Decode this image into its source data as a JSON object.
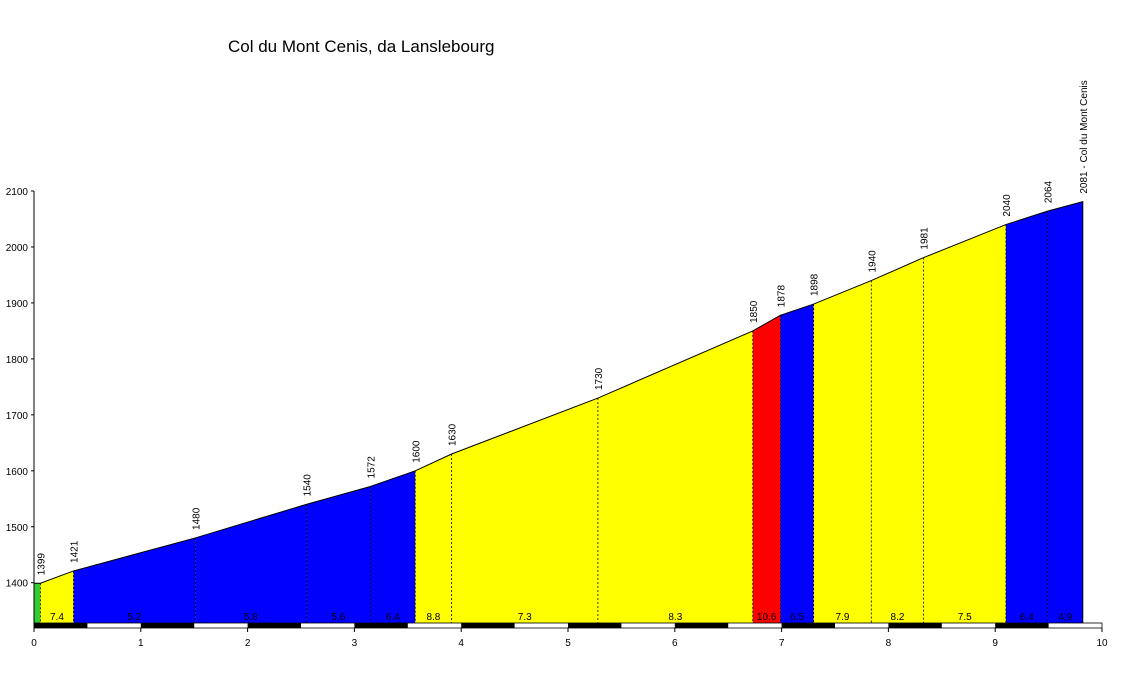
{
  "chart_data": {
    "type": "area",
    "title": "Col du Mont Cenis, da Lanslebourg",
    "xlabel": "",
    "ylabel": "",
    "xlim": [
      0,
      10
    ],
    "ylim": [
      1328,
      2100
    ],
    "x_ticks": [
      "0",
      "1",
      "2",
      "3",
      "4",
      "5",
      "6",
      "7",
      "8",
      "9",
      "10"
    ],
    "y_ticks": [
      "1400",
      "1500",
      "1600",
      "1700",
      "1800",
      "1900",
      "2000",
      "2100"
    ],
    "grid": false,
    "legend": "none",
    "start": {
      "x": 0,
      "y": 1399
    },
    "points": [
      {
        "x": 0.06,
        "y": 1399,
        "label": "1399"
      },
      {
        "x": 0.37,
        "y": 1421,
        "label": "1421"
      },
      {
        "x": 1.51,
        "y": 1480,
        "label": "1480"
      },
      {
        "x": 2.55,
        "y": 1540,
        "label": "1540"
      },
      {
        "x": 3.15,
        "y": 1572,
        "label": "1572"
      },
      {
        "x": 3.57,
        "y": 1600,
        "label": "1600"
      },
      {
        "x": 3.91,
        "y": 1630,
        "label": "1630"
      },
      {
        "x": 5.28,
        "y": 1730,
        "label": "1730"
      },
      {
        "x": 6.73,
        "y": 1850,
        "label": "1850"
      },
      {
        "x": 6.99,
        "y": 1878,
        "label": "1878"
      },
      {
        "x": 7.3,
        "y": 1898,
        "label": "1898"
      },
      {
        "x": 7.84,
        "y": 1940,
        "label": "1940"
      },
      {
        "x": 8.33,
        "y": 1981,
        "label": "1981"
      },
      {
        "x": 9.1,
        "y": 2040,
        "label": "2040"
      },
      {
        "x": 9.49,
        "y": 2064,
        "label": "2064"
      },
      {
        "x": 9.82,
        "y": 2081,
        "label": "2081 - Col du Mont Cenis"
      }
    ],
    "segments": [
      {
        "from": 0.0,
        "to": 0.06,
        "grade": "",
        "color": "#33cc33"
      },
      {
        "from": 0.06,
        "to": 0.37,
        "grade": "7.4",
        "color": "#ffff00"
      },
      {
        "from": 0.37,
        "to": 1.51,
        "grade": "5.2",
        "color": "#0000ff"
      },
      {
        "from": 1.51,
        "to": 2.55,
        "grade": "5.8",
        "color": "#0000ff"
      },
      {
        "from": 2.55,
        "to": 3.15,
        "grade": "5.6",
        "color": "#0000ff"
      },
      {
        "from": 3.15,
        "to": 3.57,
        "grade": "6.4",
        "color": "#0000ff"
      },
      {
        "from": 3.57,
        "to": 3.91,
        "grade": "8.8",
        "color": "#ffff00"
      },
      {
        "from": 3.91,
        "to": 5.28,
        "grade": "7.3",
        "color": "#ffff00"
      },
      {
        "from": 5.28,
        "to": 6.73,
        "grade": "8.3",
        "color": "#ffff00"
      },
      {
        "from": 6.73,
        "to": 6.99,
        "grade": "10.6",
        "color": "#ff0000"
      },
      {
        "from": 6.99,
        "to": 7.3,
        "grade": "6.5",
        "color": "#0000ff"
      },
      {
        "from": 7.3,
        "to": 7.84,
        "grade": "7.9",
        "color": "#ffff00"
      },
      {
        "from": 7.84,
        "to": 8.33,
        "grade": "8.2",
        "color": "#ffff00"
      },
      {
        "from": 8.33,
        "to": 9.1,
        "grade": "7.5",
        "color": "#ffff00"
      },
      {
        "from": 9.1,
        "to": 9.49,
        "grade": "6.4",
        "color": "#0000ff"
      },
      {
        "from": 9.49,
        "to": 9.82,
        "grade": "4.9",
        "color": "#0000ff"
      }
    ]
  }
}
